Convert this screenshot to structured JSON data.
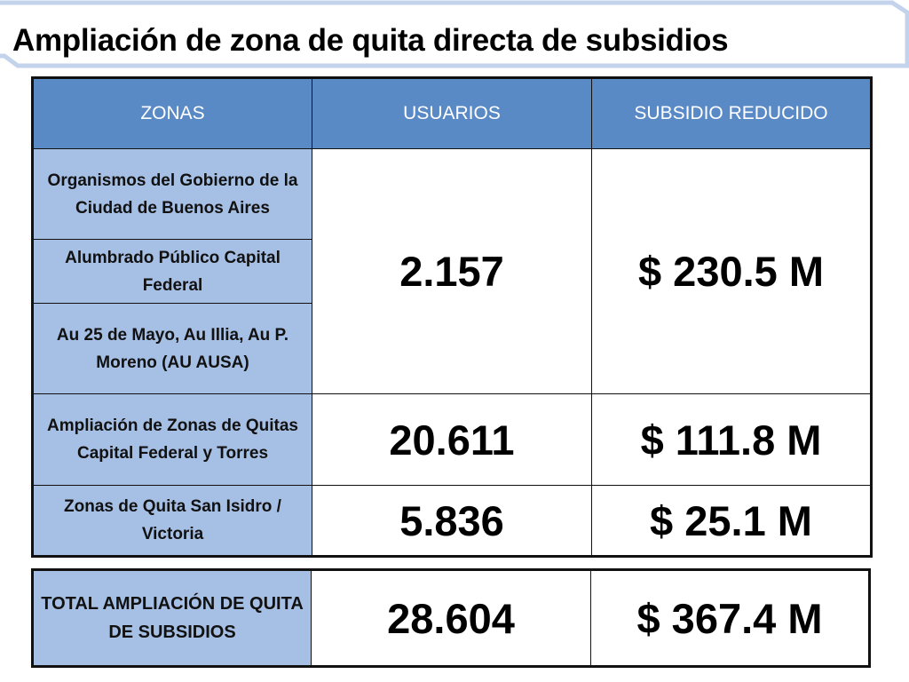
{
  "title": "Ampliación de zona de quita directa de subsidios",
  "headers": [
    "ZONAS",
    "USUARIOS",
    "SUBSIDIO REDUCIDO"
  ],
  "zones": [
    "Organismos del Gobierno de la Ciudad de Buenos Aires",
    "Alumbrado Público Capital Federal",
    "Au 25 de Mayo, Au Illia, Au P. Moreno (AU AUSA)",
    "Ampliación de Zonas de Quitas Capital Federal y Torres",
    "Zonas de Quita San Isidro / Victoria"
  ],
  "groups": [
    {
      "usuarios": "2.157",
      "subsidio": "$ 230.5 M"
    },
    {
      "usuarios": "20.611",
      "subsidio": "$ 111.8 M"
    },
    {
      "usuarios": "5.836",
      "subsidio": "$ 25.1 M"
    }
  ],
  "total": {
    "label": "TOTAL AMPLIACIÓN DE QUITA DE SUBSIDIOS",
    "usuarios": "28.604",
    "subsidio": "$ 367.4 M"
  },
  "colors": {
    "header_bg": "#5a8ac6",
    "zone_bg": "#a6bfe4",
    "title_frame": "#c9d8ee"
  }
}
